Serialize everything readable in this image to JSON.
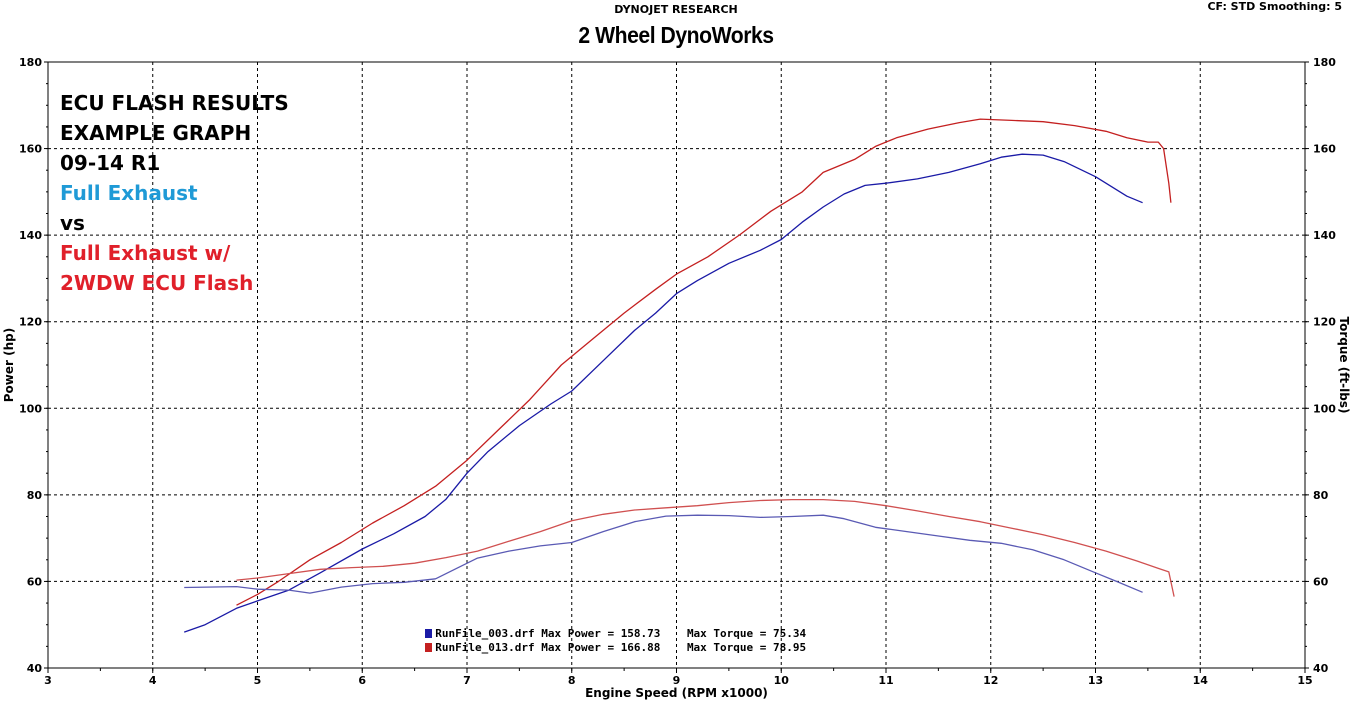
{
  "header": {
    "research": "DYNOJET RESEARCH",
    "shop": "2 Wheel DynoWorks",
    "cf": "CF: STD  Smoothing: 5"
  },
  "annotations": [
    {
      "text": "ECU FLASH RESULTS",
      "color": "#000000"
    },
    {
      "text": "EXAMPLE GRAPH",
      "color": "#000000"
    },
    {
      "text": "09-14 R1",
      "color": "#000000"
    },
    {
      "text": "Full  Exhaust",
      "color": "#1f9ad6"
    },
    {
      "text": "vs",
      "color": "#000000"
    },
    {
      "text": "Full Exhaust w/",
      "color": "#e0202a"
    },
    {
      "text": "2WDW ECU Flash",
      "color": "#e0202a"
    }
  ],
  "legend": [
    {
      "file": "RunFile_003.drf",
      "max_power": "Max Power = 158.73",
      "max_torque": "Max Torque = 75.34",
      "color": "#1a1aa6"
    },
    {
      "file": "RunFile_013.drf",
      "max_power": "Max Power = 166.88",
      "max_torque": "Max Torque = 78.95",
      "color": "#c42020"
    }
  ],
  "chart_data": {
    "type": "line",
    "xlabel": "Engine Speed (RPM x1000)",
    "ylabel": "Power (hp)",
    "y2label": "Torque (ft-lbs)",
    "xlim": [
      3,
      15
    ],
    "ylim": [
      40,
      180
    ],
    "y2lim": [
      40,
      180
    ],
    "xticks": [
      3,
      4,
      5,
      6,
      7,
      8,
      9,
      10,
      11,
      12,
      13,
      14,
      15
    ],
    "yticks": [
      40,
      60,
      80,
      100,
      120,
      140,
      160,
      180
    ],
    "grid": true,
    "series": [
      {
        "name": "RunFile_003.drf",
        "measure": "power",
        "color": "#1a1aa6",
        "points": [
          [
            4.3,
            48.3
          ],
          [
            4.5,
            50
          ],
          [
            4.8,
            53.8
          ],
          [
            5.0,
            55.5
          ],
          [
            5.3,
            58
          ],
          [
            5.6,
            62
          ],
          [
            6.0,
            67.5
          ],
          [
            6.3,
            71
          ],
          [
            6.6,
            75
          ],
          [
            6.8,
            79
          ],
          [
            7.0,
            85
          ],
          [
            7.2,
            90
          ],
          [
            7.5,
            96
          ],
          [
            7.8,
            101
          ],
          [
            8.0,
            104
          ],
          [
            8.3,
            111
          ],
          [
            8.6,
            118
          ],
          [
            8.8,
            122
          ],
          [
            9.0,
            126.5
          ],
          [
            9.2,
            129.5
          ],
          [
            9.5,
            133.5
          ],
          [
            9.8,
            136.5
          ],
          [
            10.0,
            139
          ],
          [
            10.2,
            143
          ],
          [
            10.4,
            146.5
          ],
          [
            10.6,
            149.5
          ],
          [
            10.8,
            151.5
          ],
          [
            11.0,
            152
          ],
          [
            11.3,
            153
          ],
          [
            11.6,
            154.5
          ],
          [
            11.9,
            156.5
          ],
          [
            12.1,
            158
          ],
          [
            12.3,
            158.7
          ],
          [
            12.5,
            158.5
          ],
          [
            12.7,
            157
          ],
          [
            13.0,
            153.5
          ],
          [
            13.3,
            149
          ],
          [
            13.45,
            147.5
          ]
        ]
      },
      {
        "name": "RunFile_013.drf",
        "measure": "power",
        "color": "#c42020",
        "points": [
          [
            4.8,
            54.5
          ],
          [
            5.0,
            57
          ],
          [
            5.2,
            60
          ],
          [
            5.5,
            65
          ],
          [
            5.8,
            69
          ],
          [
            6.1,
            73.5
          ],
          [
            6.4,
            77.5
          ],
          [
            6.7,
            82
          ],
          [
            7.0,
            88
          ],
          [
            7.3,
            95
          ],
          [
            7.6,
            102
          ],
          [
            7.9,
            110
          ],
          [
            8.2,
            116
          ],
          [
            8.5,
            122
          ],
          [
            8.8,
            127.5
          ],
          [
            9.0,
            131
          ],
          [
            9.3,
            135
          ],
          [
            9.6,
            140
          ],
          [
            9.9,
            145.5
          ],
          [
            10.2,
            150
          ],
          [
            10.4,
            154.5
          ],
          [
            10.7,
            157.5
          ],
          [
            10.9,
            160.5
          ],
          [
            11.1,
            162.5
          ],
          [
            11.4,
            164.5
          ],
          [
            11.7,
            166
          ],
          [
            11.9,
            166.8
          ],
          [
            12.2,
            166.5
          ],
          [
            12.5,
            166.2
          ],
          [
            12.8,
            165.3
          ],
          [
            13.1,
            164
          ],
          [
            13.3,
            162.5
          ],
          [
            13.5,
            161.5
          ],
          [
            13.6,
            161.5
          ],
          [
            13.65,
            160
          ],
          [
            13.7,
            152
          ],
          [
            13.72,
            147.5
          ]
        ]
      },
      {
        "name": "RunFile_003.drf",
        "measure": "torque",
        "color": "#5a5ab4",
        "points": [
          [
            4.3,
            58.6
          ],
          [
            4.8,
            58.8
          ],
          [
            5.0,
            58.2
          ],
          [
            5.3,
            58
          ],
          [
            5.5,
            57.3
          ],
          [
            5.8,
            58.7
          ],
          [
            6.1,
            59.5
          ],
          [
            6.4,
            59.8
          ],
          [
            6.7,
            60.6
          ],
          [
            6.9,
            63
          ],
          [
            7.1,
            65.4
          ],
          [
            7.4,
            67
          ],
          [
            7.7,
            68.2
          ],
          [
            8.0,
            69
          ],
          [
            8.3,
            71.5
          ],
          [
            8.6,
            73.8
          ],
          [
            8.9,
            75.1
          ],
          [
            9.2,
            75.3
          ],
          [
            9.5,
            75.2
          ],
          [
            9.8,
            74.8
          ],
          [
            10.1,
            75
          ],
          [
            10.4,
            75.3
          ],
          [
            10.6,
            74.5
          ],
          [
            10.9,
            72.5
          ],
          [
            11.2,
            71.5
          ],
          [
            11.5,
            70.5
          ],
          [
            11.8,
            69.5
          ],
          [
            12.1,
            68.8
          ],
          [
            12.4,
            67.3
          ],
          [
            12.7,
            65
          ],
          [
            13.0,
            62
          ],
          [
            13.2,
            60
          ],
          [
            13.45,
            57.5
          ]
        ]
      },
      {
        "name": "RunFile_013.drf",
        "measure": "torque",
        "color": "#d05050",
        "points": [
          [
            4.8,
            60.3
          ],
          [
            5.0,
            60.8
          ],
          [
            5.3,
            61.8
          ],
          [
            5.6,
            62.8
          ],
          [
            5.9,
            63.2
          ],
          [
            6.2,
            63.5
          ],
          [
            6.5,
            64.2
          ],
          [
            6.8,
            65.5
          ],
          [
            7.1,
            67
          ],
          [
            7.4,
            69.3
          ],
          [
            7.7,
            71.5
          ],
          [
            8.0,
            74
          ],
          [
            8.3,
            75.5
          ],
          [
            8.6,
            76.5
          ],
          [
            8.9,
            77
          ],
          [
            9.2,
            77.5
          ],
          [
            9.5,
            78.2
          ],
          [
            9.8,
            78.7
          ],
          [
            10.1,
            78.9
          ],
          [
            10.4,
            78.9
          ],
          [
            10.7,
            78.5
          ],
          [
            11.0,
            77.5
          ],
          [
            11.3,
            76.3
          ],
          [
            11.6,
            75
          ],
          [
            11.9,
            73.8
          ],
          [
            12.2,
            72.3
          ],
          [
            12.5,
            70.8
          ],
          [
            12.8,
            69
          ],
          [
            13.1,
            67
          ],
          [
            13.4,
            64.7
          ],
          [
            13.6,
            63
          ],
          [
            13.7,
            62.2
          ],
          [
            13.75,
            56.5
          ]
        ]
      }
    ]
  }
}
